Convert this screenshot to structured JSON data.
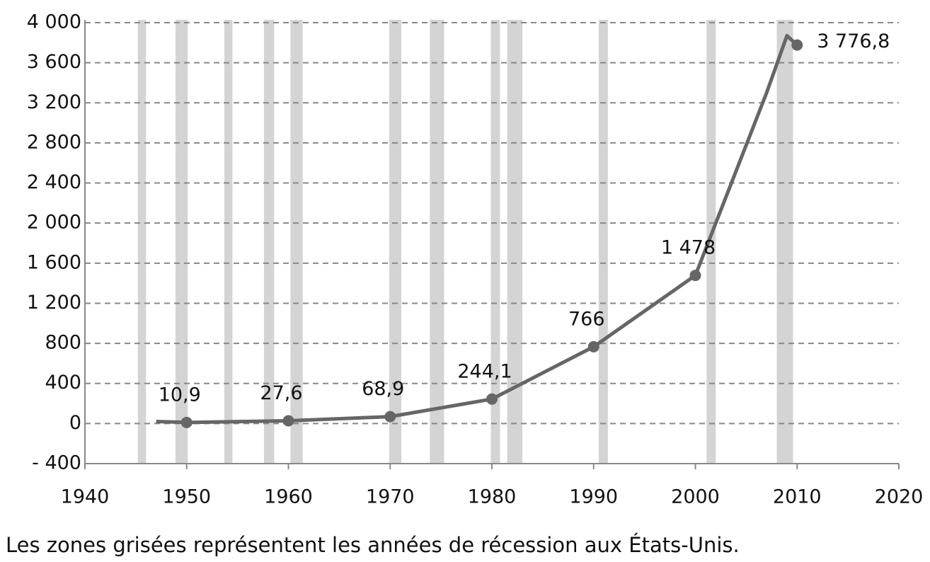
{
  "chart_data": {
    "type": "line",
    "x": [
      1947,
      1950,
      1960,
      1970,
      1980,
      1990,
      2000,
      2007,
      2009,
      2010
    ],
    "series": [
      {
        "color": "#666666",
        "values": [
          20,
          10.9,
          27.6,
          68.9,
          244.1,
          766,
          1478,
          3300,
          3870,
          3776.8
        ],
        "value_labels": [
          null,
          "10,9",
          "27,6",
          "68,9",
          "244,1",
          "766",
          "1 478",
          null,
          null,
          "3 776,8"
        ]
      }
    ],
    "shaded_ranges": [
      [
        1945.2,
        1946
      ],
      [
        1948.9,
        1950.1
      ],
      [
        1953.7,
        1954.5
      ],
      [
        1957.6,
        1958.6
      ],
      [
        1960.2,
        1961.4
      ],
      [
        1969.9,
        1971.1
      ],
      [
        1973.9,
        1975.3
      ],
      [
        1979.9,
        1980.8
      ],
      [
        1981.5,
        1983
      ],
      [
        1990.5,
        1991.4
      ],
      [
        2001.1,
        2002
      ],
      [
        2008,
        2009.6
      ]
    ],
    "shade_color": "#d4d4d4",
    "xlim": [
      1940,
      2020
    ],
    "xticks": [
      1940,
      1950,
      1960,
      1970,
      1980,
      1990,
      2000,
      2010,
      2020
    ],
    "ylim": [
      -400,
      4000
    ],
    "yticks": [
      {
        "value": -400,
        "label": "- 400"
      },
      0,
      400,
      800,
      {
        "value": 1200,
        "label": "1 200"
      },
      {
        "value": 1600,
        "label": "1 600"
      },
      {
        "value": 2000,
        "label": "2 000"
      },
      {
        "value": 2400,
        "label": "2 400"
      },
      {
        "value": 2800,
        "label": "2 800"
      },
      {
        "value": 3200,
        "label": "3 200"
      },
      {
        "value": 3600,
        "label": "3 600"
      },
      {
        "value": 4000,
        "label": "4 000"
      }
    ],
    "grid": true,
    "note": "Les zones grisées représentent les années de récession aux États-Unis."
  }
}
